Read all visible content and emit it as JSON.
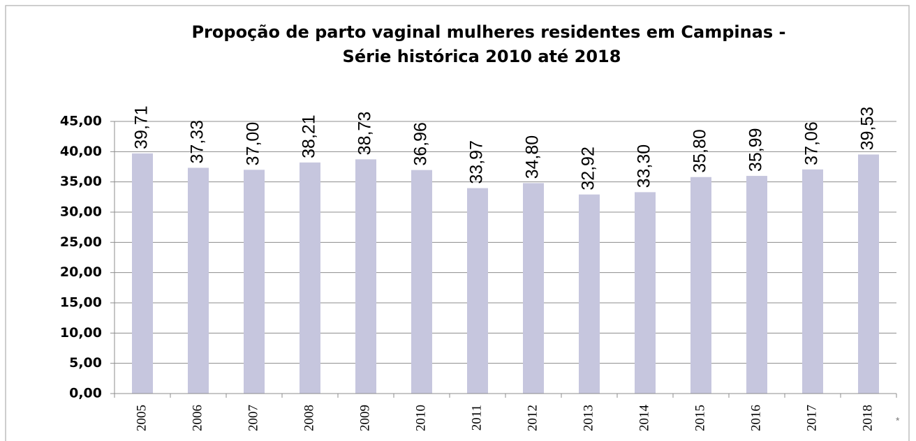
{
  "chart_data": {
    "type": "bar",
    "title": [
      "Propoção de parto vaginal mulheres residentes  em Campinas -",
      "Série histórica 2010 até 2018"
    ],
    "categories": [
      "2005",
      "2006",
      "2007",
      "2008",
      "2009",
      "2010",
      "2011",
      "2012",
      "2013",
      "2014",
      "2015",
      "2016",
      "2017",
      "2018"
    ],
    "values": [
      39.71,
      37.33,
      37.0,
      38.21,
      38.73,
      36.96,
      33.97,
      34.8,
      32.92,
      33.3,
      35.8,
      35.99,
      37.06,
      39.53
    ],
    "value_labels": [
      "39,71",
      "37,33",
      "37,00",
      "38,21",
      "38,73",
      "36,96",
      "33,97",
      "34,80",
      "32,92",
      "33,30",
      "35,80",
      "35,99",
      "37,06",
      "39,53"
    ],
    "color": "#c6c6de",
    "ylim": [
      0,
      45
    ],
    "yticks": [
      {
        "value": 0,
        "label": "0,00"
      },
      {
        "value": 5,
        "label": "5,00"
      },
      {
        "value": 10,
        "label": "10,00"
      },
      {
        "value": 15,
        "label": "15,00"
      },
      {
        "value": 20,
        "label": "20,00"
      },
      {
        "value": 25,
        "label": "25,00"
      },
      {
        "value": 30,
        "label": "30,00"
      },
      {
        "value": 35,
        "label": "35,00"
      },
      {
        "value": 40,
        "label": "40,00"
      },
      {
        "value": 45,
        "label": "45,00"
      }
    ],
    "grid": true,
    "annotation": "*"
  }
}
